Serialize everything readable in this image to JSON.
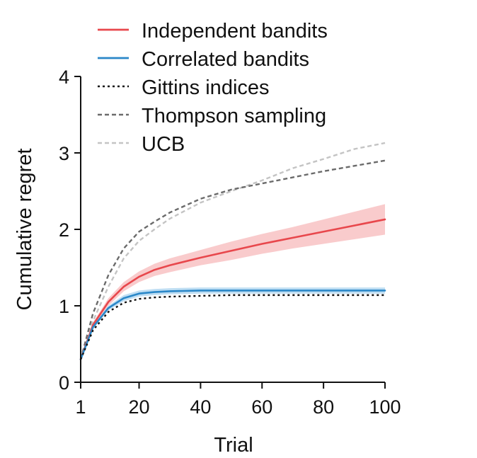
{
  "chart_data": {
    "type": "line",
    "title": "",
    "xlabel": "Trial",
    "ylabel": "Cumulative regret",
    "xlim": [
      1,
      100
    ],
    "ylim": [
      0,
      4
    ],
    "xticks": [
      1,
      20,
      40,
      60,
      80,
      100
    ],
    "yticks": [
      0,
      1,
      2,
      3,
      4
    ],
    "grid": false,
    "legend_position": "top-left",
    "series": [
      {
        "name": "Independent bandits",
        "color": "#e8474c",
        "band_color": "#f7b9bb",
        "style": "solid",
        "x": [
          1,
          5,
          10,
          15,
          20,
          25,
          30,
          40,
          50,
          60,
          70,
          80,
          90,
          100
        ],
        "y": [
          0.3,
          0.75,
          1.05,
          1.25,
          1.38,
          1.47,
          1.53,
          1.63,
          1.72,
          1.81,
          1.89,
          1.97,
          2.05,
          2.13
        ],
        "band": [
          0,
          0.03,
          0.05,
          0.06,
          0.07,
          0.08,
          0.09,
          0.1,
          0.12,
          0.13,
          0.14,
          0.16,
          0.18,
          0.2
        ]
      },
      {
        "name": "Correlated bandits",
        "color": "#2a87c8",
        "band_color": "#a9d3ef",
        "style": "solid",
        "x": [
          1,
          5,
          10,
          15,
          20,
          25,
          30,
          40,
          50,
          60,
          70,
          80,
          90,
          100
        ],
        "y": [
          0.3,
          0.72,
          0.97,
          1.1,
          1.16,
          1.18,
          1.19,
          1.2,
          1.2,
          1.2,
          1.2,
          1.2,
          1.2,
          1.2
        ],
        "band": [
          0,
          0.02,
          0.03,
          0.04,
          0.04,
          0.04,
          0.04,
          0.04,
          0.04,
          0.04,
          0.04,
          0.04,
          0.04,
          0.04
        ]
      },
      {
        "name": "Gittins indices",
        "color": "#111111",
        "style": "dotted",
        "x": [
          1,
          5,
          10,
          15,
          20,
          25,
          30,
          40,
          50,
          60,
          70,
          80,
          90,
          100
        ],
        "y": [
          0.3,
          0.68,
          0.92,
          1.04,
          1.09,
          1.11,
          1.12,
          1.13,
          1.14,
          1.14,
          1.14,
          1.14,
          1.14,
          1.14
        ]
      },
      {
        "name": "Thompson sampling",
        "color": "#6b6b6b",
        "style": "dashed",
        "x": [
          1,
          5,
          10,
          15,
          20,
          25,
          30,
          40,
          50,
          60,
          70,
          80,
          90,
          100
        ],
        "y": [
          0.3,
          0.9,
          1.4,
          1.75,
          1.97,
          2.1,
          2.22,
          2.4,
          2.52,
          2.6,
          2.68,
          2.76,
          2.83,
          2.9
        ]
      },
      {
        "name": "UCB",
        "color": "#c4c4c4",
        "style": "dashed",
        "x": [
          1,
          5,
          10,
          15,
          20,
          25,
          30,
          40,
          50,
          60,
          70,
          80,
          90,
          100
        ],
        "y": [
          0.3,
          0.8,
          1.25,
          1.62,
          1.85,
          2.0,
          2.14,
          2.35,
          2.5,
          2.64,
          2.8,
          2.92,
          3.05,
          3.13
        ]
      }
    ]
  }
}
